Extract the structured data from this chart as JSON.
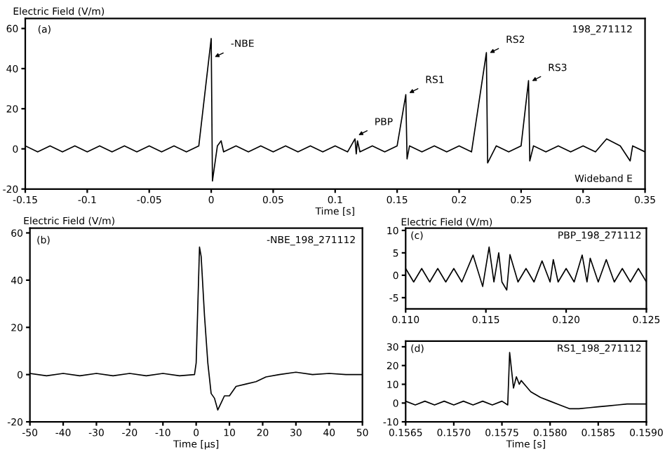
{
  "chart_data": [
    {
      "type": "line",
      "ylabel": "Electric Field (V/m)",
      "xlabel": "Time [s]",
      "annotations": [
        "(a)",
        "198_271112",
        "Wideband E",
        {
          "text": "-NBE",
          "x": 0.0,
          "y": 45
        },
        {
          "text": "PBP",
          "x": 0.116,
          "y": 6
        },
        {
          "text": "RS1",
          "x": 0.157,
          "y": 27
        },
        {
          "text": "RS2",
          "x": 0.222,
          "y": 47
        },
        {
          "text": "RS3",
          "x": 0.256,
          "y": 33
        }
      ],
      "x": [
        -0.15,
        -0.14,
        -0.13,
        -0.12,
        -0.11,
        -0.1,
        -0.09,
        -0.08,
        -0.07,
        -0.06,
        -0.05,
        -0.04,
        -0.03,
        -0.02,
        -0.01,
        0.0,
        0.001,
        0.005,
        0.008,
        0.01,
        0.02,
        0.03,
        0.04,
        0.05,
        0.06,
        0.07,
        0.08,
        0.09,
        0.1,
        0.11,
        0.116,
        0.117,
        0.118,
        0.12,
        0.13,
        0.14,
        0.15,
        0.157,
        0.158,
        0.16,
        0.17,
        0.18,
        0.19,
        0.2,
        0.21,
        0.222,
        0.223,
        0.23,
        0.24,
        0.25,
        0.256,
        0.257,
        0.26,
        0.27,
        0.28,
        0.29,
        0.3,
        0.31,
        0.319,
        0.33,
        0.338,
        0.34,
        0.35
      ],
      "series": [
        {
          "color": "#000000",
          "values": [
            1.5,
            -1.5,
            1.5,
            -1.5,
            1.5,
            -1.5,
            1.5,
            -1.5,
            1.5,
            -1.5,
            1.5,
            -1.5,
            1.5,
            -1.5,
            1.5,
            55,
            -16,
            1.5,
            4,
            -1.5,
            1.5,
            -1.5,
            1.5,
            -1.5,
            1.5,
            -1.5,
            1.5,
            -1.5,
            1.5,
            -1.5,
            5,
            -2.5,
            4,
            -1.5,
            1.5,
            -1.5,
            1.5,
            27,
            -5,
            1.5,
            -1.5,
            1.5,
            -1.5,
            1.5,
            -1.5,
            48,
            -7,
            1.5,
            -1.5,
            1.5,
            34,
            -6,
            1.5,
            -1.5,
            1.5,
            -1.5,
            1.5,
            -1.5,
            5,
            1.5,
            -6,
            1.5,
            -1.5
          ]
        }
      ],
      "xlim": [
        -0.15,
        0.35
      ],
      "ylim": [
        -20,
        65
      ],
      "xticks": [
        -0.15,
        -0.1,
        -0.05,
        0,
        0.05,
        0.1,
        0.15,
        0.2,
        0.25,
        0.3,
        0.35
      ],
      "yticks": [
        -20,
        0,
        20,
        40,
        60
      ]
    },
    {
      "type": "line",
      "ylabel": "Electric Field (V/m)",
      "xlabel": "Time [μs]",
      "annotations": [
        "(b)",
        "-NBE_198_271112"
      ],
      "x": [
        -50,
        -45,
        -40,
        -35,
        -30,
        -25,
        -20,
        -15,
        -10,
        -5,
        -0.5,
        0,
        1,
        1.5,
        2.5,
        3.5,
        4.5,
        5.5,
        6.5,
        7.5,
        8.5,
        10,
        11,
        12,
        15,
        18,
        21,
        25,
        30,
        35,
        40,
        45,
        50
      ],
      "series": [
        {
          "color": "#000000",
          "values": [
            0.5,
            -0.5,
            0.5,
            -0.5,
            0.5,
            -0.5,
            0.5,
            -0.5,
            0.5,
            -0.5,
            0,
            5,
            54,
            50,
            25,
            5,
            -8,
            -10,
            -15,
            -12,
            -9,
            -9,
            -7,
            -5,
            -4,
            -3,
            -1,
            0,
            1,
            0,
            0.5,
            0,
            0
          ]
        }
      ],
      "xlim": [
        -50,
        50
      ],
      "ylim": [
        -20,
        62
      ],
      "xticks": [
        -50,
        -40,
        -30,
        -20,
        -10,
        0,
        10,
        20,
        30,
        40,
        50
      ],
      "yticks": [
        -20,
        0,
        20,
        40,
        60
      ]
    },
    {
      "type": "line",
      "ylabel": "Electric Field (V/m)",
      "annotations": [
        "(c)",
        "PBP_198_271112"
      ],
      "x": [
        0.11,
        0.1105,
        0.111,
        0.1115,
        0.112,
        0.1125,
        0.113,
        0.1135,
        0.1142,
        0.1148,
        0.1152,
        0.1155,
        0.1158,
        0.116,
        0.1163,
        0.1165,
        0.117,
        0.1175,
        0.118,
        0.1185,
        0.119,
        0.1192,
        0.1195,
        0.12,
        0.1205,
        0.121,
        0.1213,
        0.1215,
        0.122,
        0.1225,
        0.123,
        0.1235,
        0.124,
        0.1245,
        0.125
      ],
      "series": [
        {
          "color": "#000000",
          "values": [
            1.5,
            -1.5,
            1.5,
            -1.5,
            1.5,
            -1.5,
            1.5,
            -1.5,
            4.5,
            -2.5,
            6.3,
            -1.5,
            5,
            -1.5,
            -3.3,
            4.6,
            -1.5,
            1.5,
            -1.5,
            3.2,
            -1.5,
            3.5,
            -1.5,
            1.5,
            -1.5,
            4.5,
            -1.5,
            3.8,
            -1.5,
            3.5,
            -1.5,
            1.5,
            -1.5,
            1.5,
            -1.5
          ]
        }
      ],
      "xlim": [
        0.11,
        0.125
      ],
      "ylim": [
        -7.5,
        10.5
      ],
      "xticks": [
        {
          "value": 0.11,
          "label": "0.110"
        },
        0.115,
        {
          "value": 0.12,
          "label": "0.120"
        },
        0.125
      ],
      "yticks": [
        -5,
        0,
        5,
        10
      ]
    },
    {
      "type": "line",
      "xlabel": "Time [s]",
      "annotations": [
        "(d)",
        "RS1_198_271112"
      ],
      "x": [
        0.1565,
        0.1566,
        0.1567,
        0.1568,
        0.1569,
        0.157,
        0.1571,
        0.1572,
        0.1573,
        0.1574,
        0.1575,
        0.15756,
        0.15758,
        0.15762,
        0.15765,
        0.15768,
        0.1577,
        0.15775,
        0.1578,
        0.1579,
        0.158,
        0.1581,
        0.1582,
        0.1583,
        0.1584,
        0.1585,
        0.1586,
        0.1587,
        0.1588,
        0.1589,
        0.159
      ],
      "series": [
        {
          "color": "#000000",
          "values": [
            1,
            -1,
            1,
            -1,
            1,
            -1,
            1,
            -1,
            1,
            -1,
            1,
            -1,
            27,
            8,
            14,
            10,
            12,
            9,
            6,
            3,
            1,
            -1,
            -3,
            -3,
            -2.5,
            -2,
            -1.5,
            -1,
            -0.5,
            -0.5,
            -0.5
          ]
        }
      ],
      "xlim": [
        0.1565,
        0.159
      ],
      "ylim": [
        -10,
        33
      ],
      "xticks": [
        0.1565,
        {
          "value": 0.157,
          "label": "0.1570"
        },
        0.1575,
        {
          "value": 0.158,
          "label": "0.1580"
        },
        0.1585,
        {
          "value": 0.159,
          "label": "0.1590"
        }
      ],
      "yticks": [
        -10,
        0,
        10,
        20,
        30
      ]
    }
  ]
}
